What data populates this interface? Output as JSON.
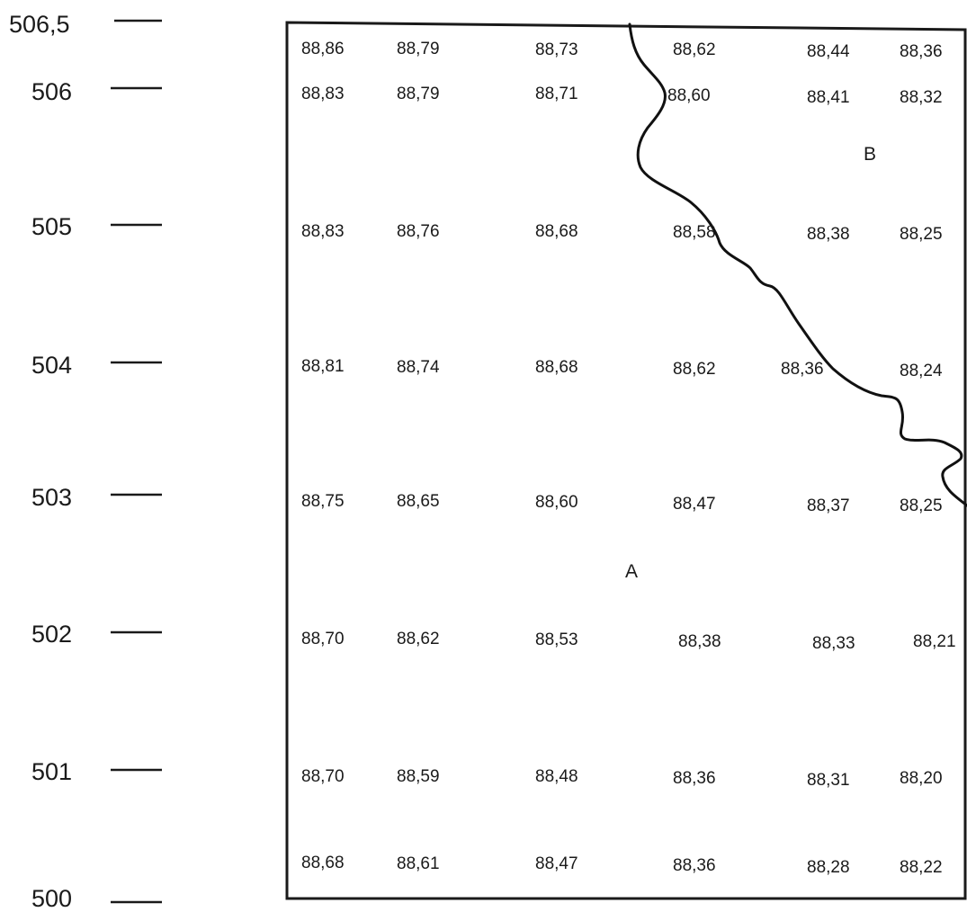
{
  "scale": {
    "labels": [
      "506,5",
      "506",
      "505",
      "504",
      "503",
      "502",
      "501",
      "500"
    ]
  },
  "grid": {
    "rows": [
      [
        "88,86",
        "88,79",
        "88,73",
        "88,62",
        "88,44",
        "88,36"
      ],
      [
        "88,83",
        "88,79",
        "88,71",
        "88,60",
        "88,41",
        "88,32"
      ],
      [
        "88,83",
        "88,76",
        "88,68",
        "88,58",
        "88,38",
        "88,25"
      ],
      [
        "88,81",
        "88,74",
        "88,68",
        "88,62",
        "88,36",
        "88,24"
      ],
      [
        "88,75",
        "88,65",
        "88,60",
        "88,47",
        "88,37",
        "88,25"
      ],
      [
        "88,70",
        "88,62",
        "88,53",
        "88,38",
        "88,33",
        "88,21"
      ],
      [
        "88,70",
        "88,59",
        "88,48",
        "88,36",
        "88,31",
        "88,20"
      ],
      [
        "88,68",
        "88,61",
        "88,47",
        "88,36",
        "88,28",
        "88,22"
      ]
    ]
  },
  "regions": {
    "a": "A",
    "b": "B"
  }
}
